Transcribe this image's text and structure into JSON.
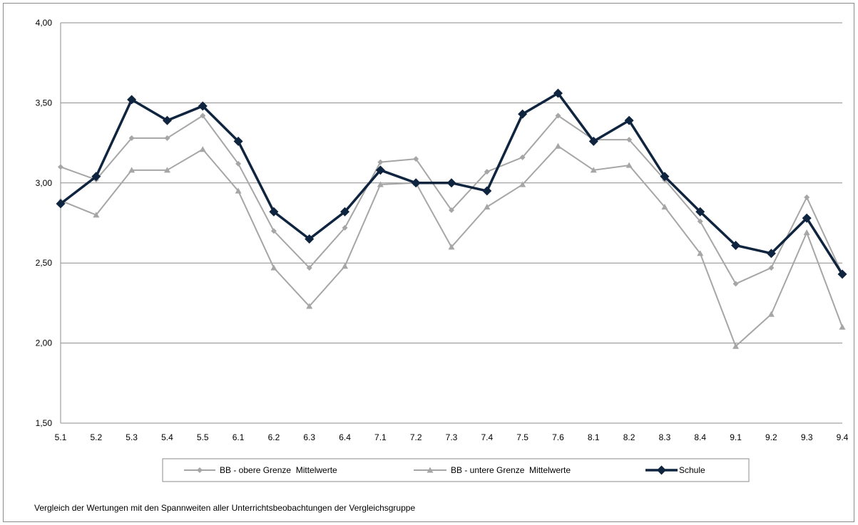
{
  "colors": {
    "obere": "#a6a6a6",
    "untere": "#a6a6a6",
    "schule": "#0f243e",
    "grid": "#8c8c8c",
    "axis_text": "#000000"
  },
  "caption": "Vergleich der Wertungen mit den Spannweiten aller Unterrichtsbeobachtungen der Vergleichsgruppe",
  "chart_data": {
    "type": "line",
    "title": "",
    "xlabel": "",
    "ylabel": "",
    "ylim": [
      1.5,
      4.0
    ],
    "yticks": [
      1.5,
      2.0,
      2.5,
      3.0,
      3.5,
      4.0
    ],
    "ytick_labels": [
      "1,50",
      "2,00",
      "2,50",
      "3,00",
      "3,50",
      "4,00"
    ],
    "grid": "horizontal",
    "legend_position": "bottom",
    "categories": [
      "5.1",
      "5.2",
      "5.3",
      "5.4",
      "5.5",
      "6.1",
      "6.2",
      "6.3",
      "6.4",
      "7.1",
      "7.2",
      "7.3",
      "7.4",
      "7.5",
      "7.6",
      "8.1",
      "8.2",
      "8.3",
      "8.4",
      "9.1",
      "9.2",
      "9.3",
      "9.4"
    ],
    "series": [
      {
        "name": "BB - obere Grenze  Mittelwerte",
        "marker": "diamond",
        "values": [
          3.1,
          3.02,
          3.28,
          3.28,
          3.42,
          3.12,
          2.7,
          2.47,
          2.72,
          3.13,
          3.15,
          2.83,
          3.07,
          3.16,
          3.42,
          3.27,
          3.27,
          3.02,
          2.76,
          2.37,
          2.47,
          2.91,
          2.43
        ]
      },
      {
        "name": "BB - untere Grenze  Mittelwerte",
        "marker": "triangle",
        "values": [
          2.89,
          2.8,
          3.08,
          3.08,
          3.21,
          2.95,
          2.47,
          2.23,
          2.48,
          2.99,
          3.0,
          2.6,
          2.85,
          2.99,
          3.23,
          3.08,
          3.11,
          2.85,
          2.56,
          1.98,
          2.18,
          2.69,
          2.1
        ]
      },
      {
        "name": "Schule",
        "marker": "diamond",
        "values": [
          2.87,
          3.04,
          3.52,
          3.39,
          3.48,
          3.26,
          2.82,
          2.65,
          2.82,
          3.08,
          3.0,
          3.0,
          2.95,
          3.43,
          3.56,
          3.26,
          3.39,
          3.04,
          2.82,
          2.61,
          2.56,
          2.78,
          2.43
        ]
      }
    ]
  }
}
